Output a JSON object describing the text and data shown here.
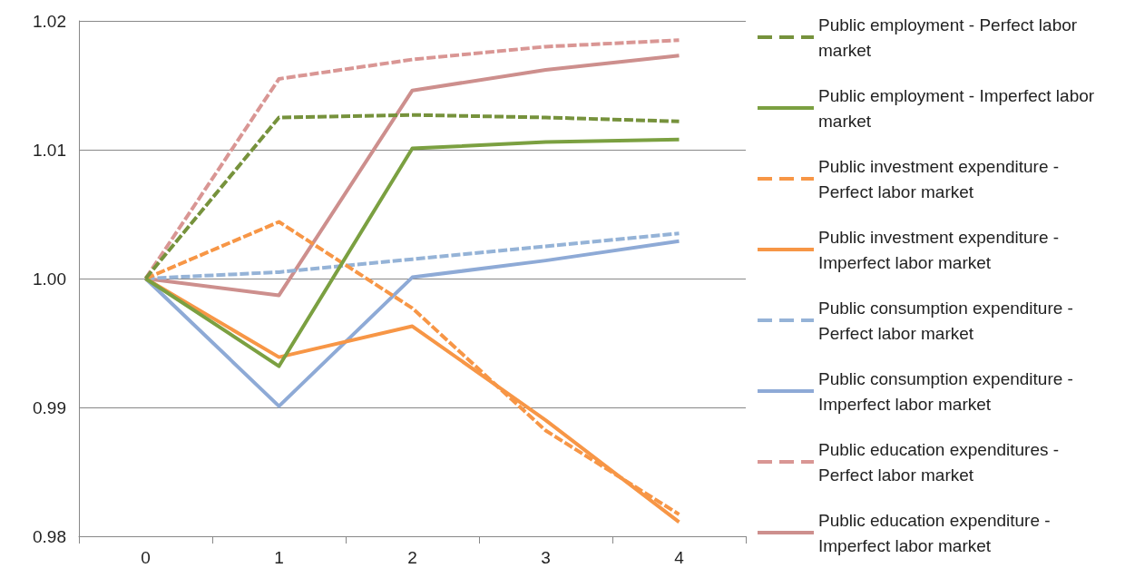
{
  "chart_data": {
    "type": "line",
    "categories": [
      "0",
      "1",
      "2",
      "3",
      "4"
    ],
    "ylim": [
      0.98,
      1.02
    ],
    "yticks": [
      {
        "value": 0.98,
        "label": "0.98"
      },
      {
        "value": 0.99,
        "label": "0.99"
      },
      {
        "value": 1.0,
        "label": "1.00"
      },
      {
        "value": 1.01,
        "label": "1.01"
      },
      {
        "value": 1.02,
        "label": "1.02"
      }
    ],
    "grid": "y",
    "legend": "right",
    "marker": "none",
    "series": [
      {
        "name": "Public employment - Perfect labor market",
        "color": "#76923c",
        "line_style": "dashed",
        "values": [
          1.0,
          1.0125,
          1.0127,
          1.0125,
          1.0122
        ]
      },
      {
        "name": "Public employment - Imperfect labor market",
        "color": "#7ba041",
        "line_style": "solid",
        "values": [
          1.0,
          0.9932,
          1.0101,
          1.0106,
          1.0108
        ]
      },
      {
        "name": "Public investment expenditure - Perfect labor market",
        "color": "#f79646",
        "line_style": "dashed",
        "values": [
          1.0,
          1.0044,
          0.9977,
          0.9882,
          0.9817
        ]
      },
      {
        "name": "Public investment expenditure - Imperfect labor market",
        "color": "#f79646",
        "line_style": "solid",
        "values": [
          1.0,
          0.9939,
          0.9963,
          0.989,
          0.9811
        ]
      },
      {
        "name": "Public consumption expenditure - Perfect labor market",
        "color": "#95b3d7",
        "line_style": "dashed",
        "values": [
          1.0,
          1.0005,
          1.0015,
          1.0025,
          1.0035
        ]
      },
      {
        "name": "Public consumption expenditure - Imperfect labor market",
        "color": "#8eaad6",
        "line_style": "solid",
        "values": [
          1.0,
          0.9901,
          1.0001,
          1.0014,
          1.0029
        ]
      },
      {
        "name": "Public education expenditures - Perfect labor market",
        "color": "#d99694",
        "line_style": "dashed",
        "values": [
          1.0,
          1.0155,
          1.017,
          1.018,
          1.0185
        ]
      },
      {
        "name": "Public education expenditure - Imperfect labor market",
        "color": "#cd8f8d",
        "line_style": "solid",
        "values": [
          1.0,
          0.9987,
          1.0146,
          1.0162,
          1.0173
        ]
      }
    ]
  }
}
